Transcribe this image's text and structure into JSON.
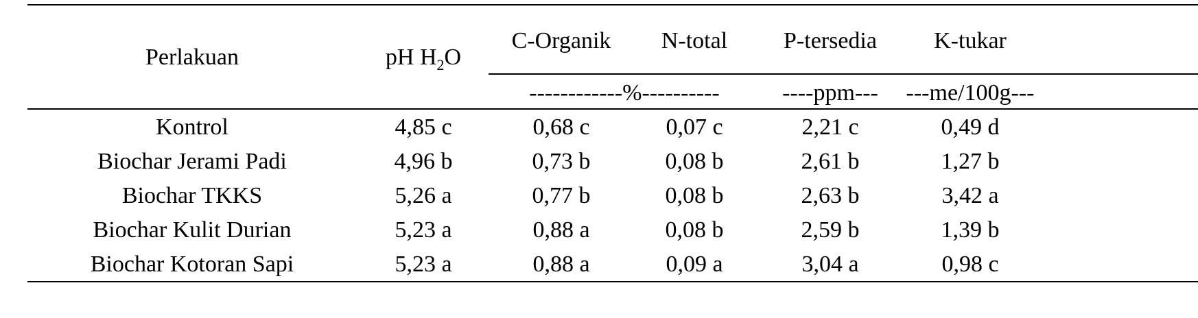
{
  "table": {
    "headers": {
      "perlakuan": "Perlakuan",
      "ph_main": "pH H",
      "ph_sub": "2",
      "ph_tail": "O",
      "c_organik": "C-Organik",
      "n_total": "N-total",
      "p_tersedia": "P-tersedia",
      "k_tukar": "K-tukar"
    },
    "units": {
      "percent": "------------%----------",
      "ppm": "----ppm---",
      "me": "---me/100g---"
    },
    "rows": [
      {
        "perlakuan": "Kontrol",
        "ph": "4,85 c",
        "c_organik": "0,68 c",
        "n_total": "0,07 c",
        "p_tersedia": "2,21 c",
        "k_tukar": "0,49 d"
      },
      {
        "perlakuan": "Biochar Jerami Padi",
        "ph": "4,96 b",
        "c_organik": "0,73 b",
        "n_total": "0,08 b",
        "p_tersedia": "2,61 b",
        "k_tukar": "1,27 b"
      },
      {
        "perlakuan": "Biochar TKKS",
        "ph": "5,26 a",
        "c_organik": "0,77 b",
        "n_total": "0,08 b",
        "p_tersedia": "2,63 b",
        "k_tukar": "3,42 a"
      },
      {
        "perlakuan": "Biochar Kulit Durian",
        "ph": "5,23 a",
        "c_organik": "0,88 a",
        "n_total": "0,08 b",
        "p_tersedia": "2,59 b",
        "k_tukar": "1,39 b"
      },
      {
        "perlakuan": "Biochar Kotoran Sapi",
        "ph": "5,23 a",
        "c_organik": "0,88 a",
        "n_total": "0,09 a",
        "p_tersedia": "3,04 a",
        "k_tukar": "0,98 c"
      }
    ]
  }
}
